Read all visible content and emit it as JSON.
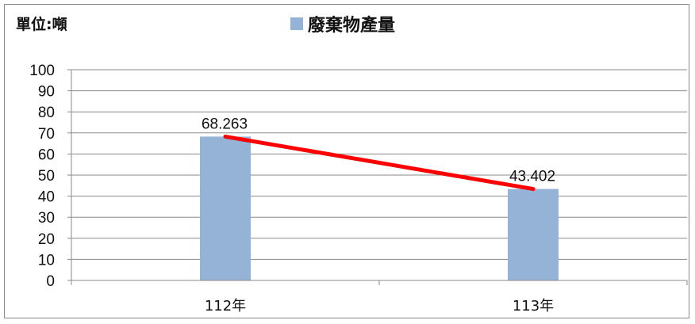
{
  "chart_data": {
    "type": "bar",
    "unit_label": "單位:噸",
    "categories": [
      "112年",
      "113年"
    ],
    "series": [
      {
        "name": "廢棄物產量",
        "values": [
          68.263,
          43.402
        ],
        "color": "#95b3d7"
      }
    ],
    "trend_line": {
      "values": [
        68.263,
        43.402
      ],
      "color": "#ff0000"
    },
    "data_labels": [
      "68.263",
      "43.402"
    ],
    "ylim": [
      0,
      100
    ],
    "yticks": [
      0,
      10,
      20,
      30,
      40,
      50,
      60,
      70,
      80,
      90,
      100
    ],
    "grid": true,
    "legend": "top"
  }
}
